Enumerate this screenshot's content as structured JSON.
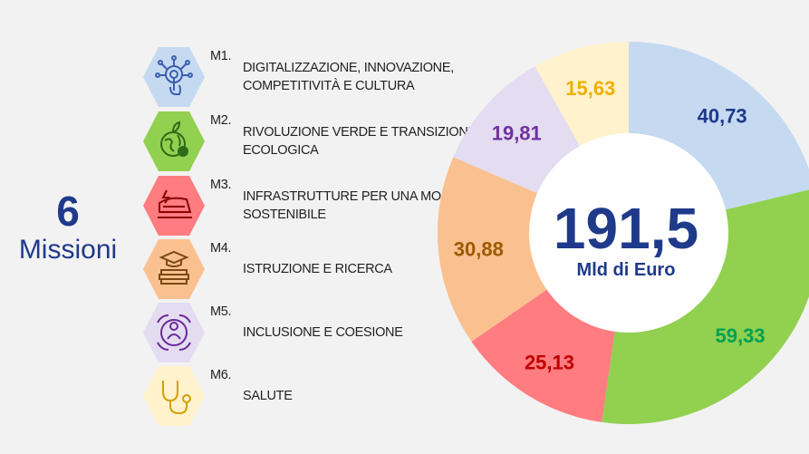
{
  "title": {
    "number": "6",
    "word": "Missioni"
  },
  "missions": [
    {
      "code": "M1.",
      "label": "DIGITALIZZAZIONE, INNOVAZIONE, COMPETITIVITÀ E CULTURA",
      "color": "#c5d9f1",
      "icon": "digital-hand-icon"
    },
    {
      "code": "M2.",
      "label": "RIVOLUZIONE VERDE E TRANSIZIONE ECOLOGICA",
      "color": "#92d050",
      "icon": "green-globe-icon"
    },
    {
      "code": "M3.",
      "label": "INFRASTRUTTURE PER UNA MOBILITÀ SOSTENIBILE",
      "color": "#ff7c80",
      "icon": "train-icon"
    },
    {
      "code": "M4.",
      "label": "ISTRUZIONE E RICERCA",
      "color": "#fac090",
      "icon": "graduation-books-icon"
    },
    {
      "code": "M5.",
      "label": "INCLUSIONE E COESIONE",
      "color": "#e4dcf0",
      "icon": "inclusion-people-icon"
    },
    {
      "code": "M6.",
      "label": "SALUTE",
      "color": "#fff2cc",
      "icon": "stethoscope-icon"
    }
  ],
  "chart_data": {
    "type": "pie",
    "donut": true,
    "center_value": "191,5",
    "center_unit": "Mld di Euro",
    "slices": [
      {
        "label": "40,73",
        "value": 40.73,
        "color": "#c5d9f1",
        "text_color": "#1f3a8a"
      },
      {
        "label": "59,33",
        "value": 59.33,
        "color": "#92d050",
        "text_color": "#00a050"
      },
      {
        "label": "25,13",
        "value": 25.13,
        "color": "#ff7c80",
        "text_color": "#c00000"
      },
      {
        "label": "30,88",
        "value": 30.88,
        "color": "#fac090",
        "text_color": "#9c5a00"
      },
      {
        "label": "19,81",
        "value": 19.81,
        "color": "#e4dcf0",
        "text_color": "#7030a0"
      },
      {
        "label": "15,63",
        "value": 15.63,
        "color": "#fff2cc",
        "text_color": "#f0b000"
      }
    ]
  }
}
